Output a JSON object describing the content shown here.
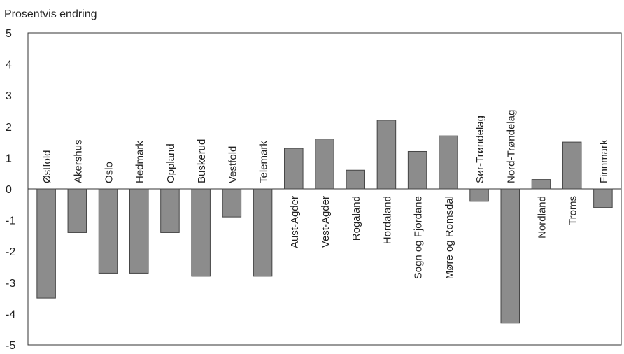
{
  "chart_data": {
    "type": "bar",
    "title": "",
    "ylabel": "Prosentvis endring",
    "xlabel": "",
    "ylim": [
      -5,
      5
    ],
    "yticks": [
      5,
      4,
      3,
      2,
      1,
      0,
      -1,
      -2,
      -3,
      -4,
      -5
    ],
    "grid": false,
    "legend": "none",
    "bar_color": "#8c8c8c",
    "bar_edge_color": "#444444",
    "categories": [
      "Østfold",
      "Akershus",
      "Oslo",
      "Hedmark",
      "Oppland",
      "Buskerud",
      "Vestfold",
      "Telemark",
      "Aust-Agder",
      "Vest-Agder",
      "Rogaland",
      "Hordaland",
      "Sogn og Fjordane",
      "Møre og Romsdal",
      "Sør-Trøndelag",
      "Nord-Trøndelag",
      "Nordland",
      "Troms",
      "Finnmark"
    ],
    "values": [
      -3.5,
      -1.4,
      -2.7,
      -2.7,
      -1.4,
      -2.8,
      -0.9,
      -2.8,
      1.3,
      1.6,
      0.6,
      2.2,
      1.2,
      1.7,
      -0.4,
      -4.3,
      0.3,
      1.5,
      -0.6
    ]
  }
}
